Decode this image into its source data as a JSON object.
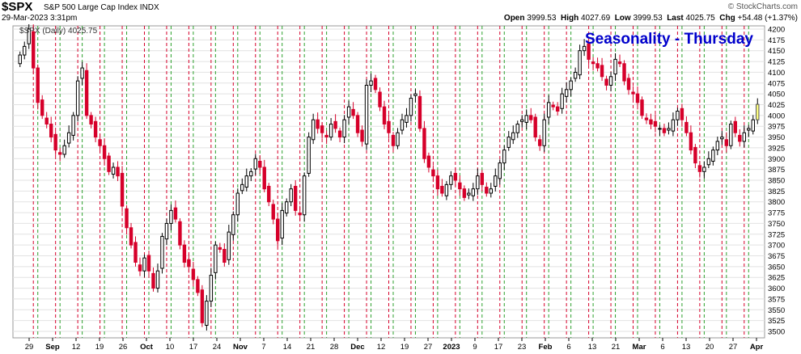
{
  "header": {
    "symbol": "$SPX",
    "name": "S&P 500 Large Cap Index",
    "exchange": "INDX",
    "datetime": "29-Mar-2023 3:31pm",
    "copyright": "© StockCharts.com",
    "open_label": "Open",
    "open": "3999.53",
    "high_label": "High",
    "high": "4027.69",
    "low_label": "Low",
    "low": "3999.53",
    "last_label": "Last",
    "last": "4025.75",
    "chg_label": "Chg",
    "chg": "+54.48 (+1.37%)"
  },
  "chart_data": {
    "type": "candlestick",
    "title": "Seasonality - Thursday",
    "legend": "$SPX (Daily) 4025.75",
    "ylim": [
      3500,
      4200
    ],
    "yticks": [
      3500,
      3525,
      3550,
      3575,
      3600,
      3625,
      3650,
      3675,
      3700,
      3725,
      3750,
      3775,
      3800,
      3825,
      3850,
      3875,
      3900,
      3925,
      3950,
      3975,
      4000,
      4025,
      4050,
      4075,
      4100,
      4125,
      4150,
      4175,
      4200
    ],
    "xticks": [
      "29",
      "Sep",
      "12",
      "19",
      "26",
      "Oct",
      "10",
      "17",
      "24",
      "Nov",
      "7",
      "14",
      "21",
      "28",
      "Dec",
      "12",
      "19",
      "27",
      "2023",
      "9",
      "17",
      "23",
      "Feb",
      "6",
      "13",
      "21",
      "Mar",
      "6",
      "13",
      "20",
      "27",
      "Apr"
    ],
    "grid": true,
    "colors": {
      "up": "#000000",
      "down": "#d6002a",
      "thursday": "#d6002a",
      "friday": "#2ca02c",
      "today": "#ffff80",
      "title": "#0000cc"
    },
    "closes": [
      4140,
      4160,
      4200,
      4110,
      4030,
      4000,
      3980,
      3950,
      3920,
      3910,
      3930,
      3960,
      4000,
      4080,
      4110,
      4000,
      3980,
      3950,
      3930,
      3900,
      3870,
      3880,
      3860,
      3790,
      3740,
      3700,
      3660,
      3640,
      3670,
      3640,
      3600,
      3640,
      3720,
      3750,
      3780,
      3760,
      3700,
      3660,
      3650,
      3620,
      3590,
      3520,
      3570,
      3630,
      3700,
      3690,
      3660,
      3730,
      3770,
      3820,
      3840,
      3860,
      3870,
      3900,
      3880,
      3830,
      3800,
      3760,
      3710,
      3780,
      3800,
      3830,
      3780,
      3770,
      3860,
      3950,
      3990,
      3970,
      3960,
      3950,
      3980,
      3970,
      3950,
      3990,
      4020,
      4000,
      3960,
      3940,
      4070,
      4080,
      4060,
      4020,
      3980,
      3960,
      3930,
      3960,
      3990,
      4000,
      4040,
      4050,
      3970,
      3900,
      3880,
      3860,
      3830,
      3820,
      3840,
      3860,
      3850,
      3830,
      3810,
      3820,
      3830,
      3860,
      3840,
      3820,
      3830,
      3860,
      3890,
      3920,
      3950,
      3960,
      3980,
      3990,
      4000,
      3990,
      3950,
      3930,
      3990,
      4030,
      4020,
      4010,
      4050,
      4060,
      4080,
      4100,
      4150,
      4160,
      4130,
      4120,
      4110,
      4090,
      4070,
      4090,
      4130,
      4120,
      4080,
      4060,
      4050,
      4030,
      4000,
      3990,
      3980,
      3975,
      3970,
      3960,
      3970,
      3990,
      4010,
      3990,
      3960,
      3920,
      3890,
      3870,
      3880,
      3900,
      3920,
      3940,
      3950,
      3930,
      3980,
      3960,
      3940,
      3960,
      3970,
      3990,
      4025.75
    ]
  }
}
